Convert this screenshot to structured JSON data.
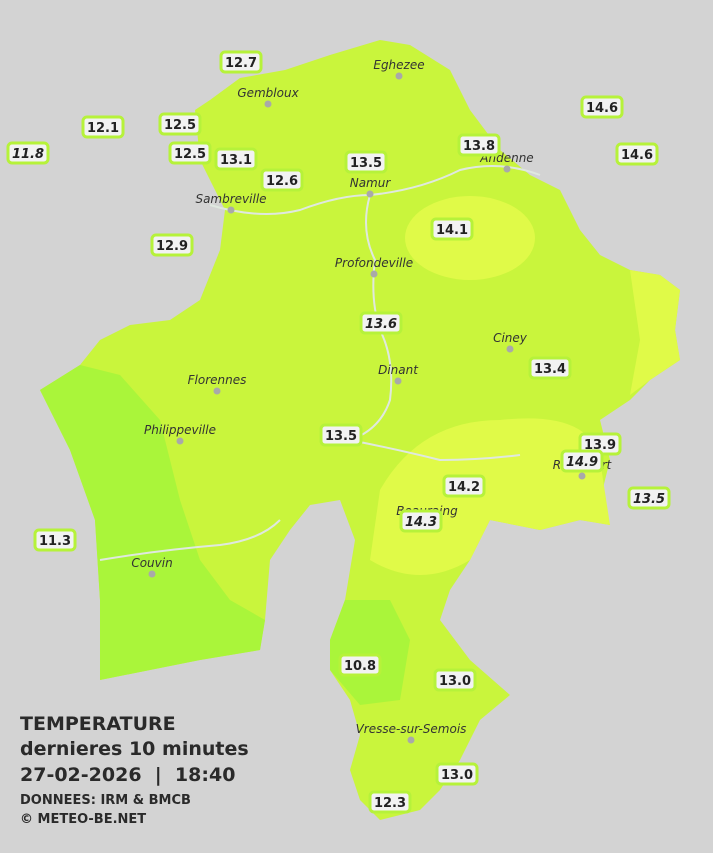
{
  "legend": {
    "title": "TEMPERATURE",
    "subtitle": "dernieres 10 minutes",
    "datetime": "27-02-2026  |  18:40",
    "source": "DONNEES: IRM & BMCB",
    "copyright": "© METEO-BE.NET"
  },
  "cities": [
    "Eghezee",
    "Gembloux",
    "Andenne",
    "Namur",
    "Sambreville",
    "Profondeville",
    "Ciney",
    "Dinant",
    "Florennes",
    "Philippeville",
    "Rochefort",
    "Beauraing",
    "Couvin",
    "Vresse-sur-Semois"
  ],
  "stations": [
    "12.7",
    "12.1",
    "11.8",
    "12.5",
    "12.5",
    "13.1",
    "12.6",
    "13.5",
    "13.8",
    "14.6",
    "14.6",
    "12.9",
    "14.1",
    "13.6",
    "13.4",
    "13.5",
    "13.9",
    "14.9",
    "14.2",
    "14.3",
    "13.5",
    "11.3",
    "10.8",
    "13.0",
    "13.0",
    "12.3"
  ]
}
